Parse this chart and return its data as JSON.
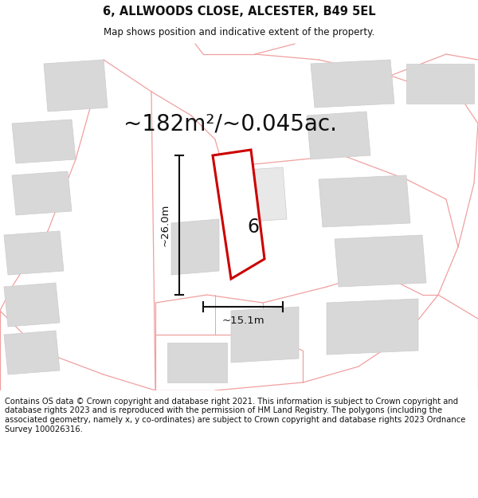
{
  "title": "6, ALLWOODS CLOSE, ALCESTER, B49 5EL",
  "subtitle": "Map shows position and indicative extent of the property.",
  "area_text": "~182m²/~0.045ac.",
  "dim_width": "~15.1m",
  "dim_height": "~26.0m",
  "plot_number": "6",
  "footer_text": "Contains OS data © Crown copyright and database right 2021. This information is subject to Crown copyright and database rights 2023 and is reproduced with the permission of HM Land Registry. The polygons (including the associated geometry, namely x, y co-ordinates) are subject to Crown copyright and database rights 2023 Ordnance Survey 100026316.",
  "map_bg": "#f7f7f7",
  "building_fill": "#d8d8d8",
  "building_edge": "#cccccc",
  "road_line": "#f0a0a0",
  "plot_fill": "#ffffff",
  "plot_edge": "#cc0000",
  "dim_color": "#111111",
  "text_color": "#111111",
  "title_fontsize": 10.5,
  "subtitle_fontsize": 8.5,
  "area_fontsize": 20,
  "footer_fontsize": 7.2,
  "number_fontsize": 17
}
